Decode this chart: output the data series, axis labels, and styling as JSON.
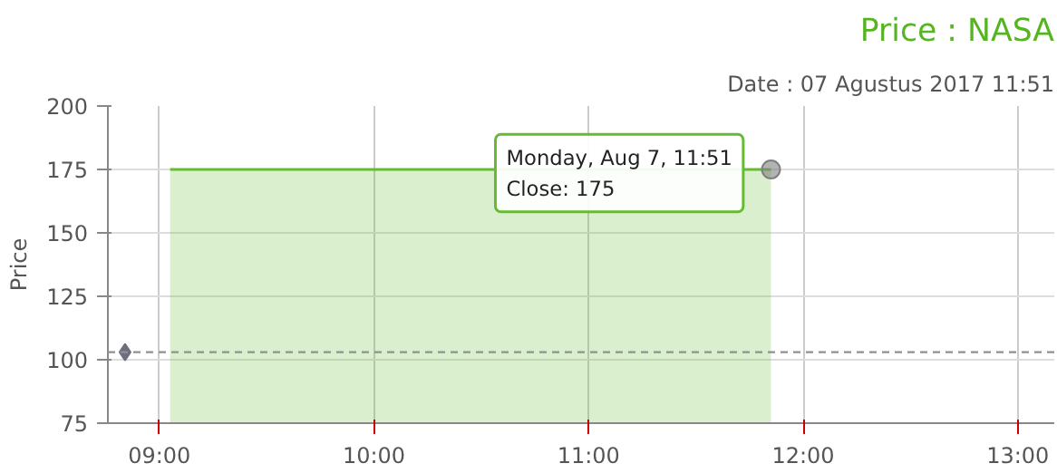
{
  "chart_data": {
    "type": "area",
    "title": "Price : NASA",
    "subtitle": "Date : 07 Agustus 2017 11:51",
    "ylabel": "Price",
    "x": [
      9.05,
      11.85
    ],
    "series": [
      {
        "color": "#66bb33",
        "values": [
          175,
          175
        ]
      },
      {
        "type": "scatter",
        "marker": "diamond",
        "color": "#6e6e80",
        "x": [
          8.84
        ],
        "values": [
          103
        ]
      }
    ],
    "ref_lines": [
      {
        "axis": "y",
        "value": 103,
        "color": "#909090",
        "line_style": "dashed"
      }
    ],
    "annotations": [
      {
        "text": "Monday, Aug 7, 11:51\nClose: 175",
        "x": 11.85,
        "y": 175
      }
    ],
    "xlim": [
      8.76,
      13.17
    ],
    "ylim": [
      75,
      200
    ],
    "xticks": [
      {
        "value": 9,
        "label": "09:00"
      },
      {
        "value": 10,
        "label": "10:00"
      },
      {
        "value": 11,
        "label": "11:00"
      },
      {
        "value": 12,
        "label": "12:00"
      },
      {
        "value": 13,
        "label": "13:00"
      }
    ],
    "yticks": [
      75,
      100,
      125,
      150,
      175,
      200
    ],
    "grid": true,
    "line_style": "solid"
  }
}
